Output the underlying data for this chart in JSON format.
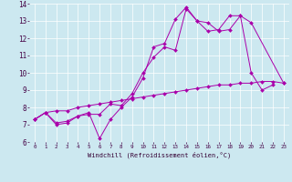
{
  "xlabel": "Windchill (Refroidissement éolien,°C)",
  "background_color": "#cce8f0",
  "line_color": "#aa00aa",
  "xlim": [
    -0.5,
    23.5
  ],
  "ylim": [
    6,
    14
  ],
  "xticks": [
    0,
    1,
    2,
    3,
    4,
    5,
    6,
    7,
    8,
    9,
    10,
    11,
    12,
    13,
    14,
    15,
    16,
    17,
    18,
    19,
    20,
    21,
    22,
    23
  ],
  "yticks": [
    6,
    7,
    8,
    9,
    10,
    11,
    12,
    13,
    14
  ],
  "series": [
    {
      "x": [
        0,
        1,
        2,
        3,
        4,
        5,
        6,
        7,
        8,
        9,
        10,
        11,
        12,
        13,
        14,
        15,
        16,
        17,
        18,
        19,
        20,
        21,
        22
      ],
      "y": [
        7.3,
        7.7,
        7.0,
        7.1,
        7.5,
        7.7,
        6.2,
        7.3,
        8.0,
        8.6,
        9.7,
        11.5,
        11.7,
        13.1,
        13.8,
        13.0,
        12.9,
        12.4,
        12.5,
        13.3,
        10.0,
        9.0,
        9.3
      ]
    },
    {
      "x": [
        0,
        1,
        2,
        3,
        4,
        5,
        6,
        7,
        8,
        9,
        10,
        11,
        12,
        13,
        14,
        15,
        16,
        17,
        18,
        19,
        20,
        23
      ],
      "y": [
        7.3,
        7.7,
        7.1,
        7.2,
        7.5,
        7.6,
        7.6,
        8.2,
        8.1,
        8.8,
        10.0,
        10.9,
        11.5,
        11.3,
        13.7,
        13.0,
        12.4,
        12.5,
        13.3,
        13.3,
        12.9,
        9.4
      ]
    },
    {
      "x": [
        0,
        1,
        2,
        3,
        4,
        5,
        6,
        7,
        8,
        9,
        10,
        11,
        12,
        13,
        14,
        15,
        16,
        17,
        18,
        19,
        20,
        21,
        22,
        23
      ],
      "y": [
        7.3,
        7.7,
        7.8,
        7.8,
        8.0,
        8.1,
        8.2,
        8.3,
        8.4,
        8.5,
        8.6,
        8.7,
        8.8,
        8.9,
        9.0,
        9.1,
        9.2,
        9.3,
        9.3,
        9.4,
        9.4,
        9.5,
        9.5,
        9.4
      ]
    }
  ]
}
